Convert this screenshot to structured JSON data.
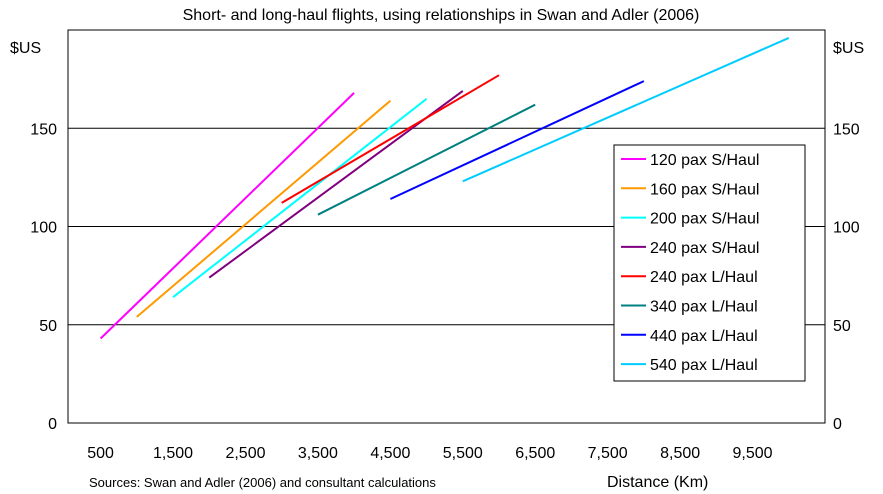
{
  "chart_data": {
    "type": "line",
    "title": "Short- and long-haul flights, using relationships in Swan and Adler (2006)",
    "ylabel": "$US",
    "ylabel_right": "$US",
    "xlabel": "Distance (Km)",
    "source": "Sources: Swan and Adler (2006) and consultant calculations",
    "xlim": [
      50,
      10500
    ],
    "ylim": [
      0,
      200
    ],
    "x_ticks": [
      500,
      1500,
      2500,
      3500,
      4500,
      5500,
      6500,
      7500,
      8500,
      9500
    ],
    "x_tick_labels": [
      "500",
      "1,500",
      "2,500",
      "3,500",
      "4,500",
      "5,500",
      "6,500",
      "7,500",
      "8,500",
      "9,500"
    ],
    "y_ticks": [
      0,
      50,
      100,
      150
    ],
    "y_tick_labels": [
      "0",
      "50",
      "100",
      "150"
    ],
    "grid": "horizontal",
    "legend_position": "right",
    "series": [
      {
        "name": "120 pax S/Haul",
        "color": "#ff00ff",
        "x": [
          500,
          4000
        ],
        "y": [
          43,
          168
        ]
      },
      {
        "name": "160 pax S/Haul",
        "color": "#ff9900",
        "x": [
          1000,
          4500
        ],
        "y": [
          54,
          164
        ]
      },
      {
        "name": "200 pax S/Haul",
        "color": "#00ffff",
        "x": [
          1500,
          5000
        ],
        "y": [
          64,
          165
        ]
      },
      {
        "name": "240 pax S/Haul",
        "color": "#800080",
        "x": [
          2000,
          5500
        ],
        "y": [
          74,
          169
        ]
      },
      {
        "name": "240 pax L/Haul",
        "color": "#ff0000",
        "x": [
          3000,
          6000
        ],
        "y": [
          112,
          177
        ]
      },
      {
        "name": "340 pax L/Haul",
        "color": "#008080",
        "x": [
          3500,
          6500
        ],
        "y": [
          106,
          162
        ]
      },
      {
        "name": "440 pax L/Haul",
        "color": "#0000ff",
        "x": [
          4500,
          8000
        ],
        "y": [
          114,
          174
        ]
      },
      {
        "name": "540 pax L/Haul",
        "color": "#00ccff",
        "x": [
          5500,
          10000
        ],
        "y": [
          123,
          196
        ]
      }
    ]
  }
}
